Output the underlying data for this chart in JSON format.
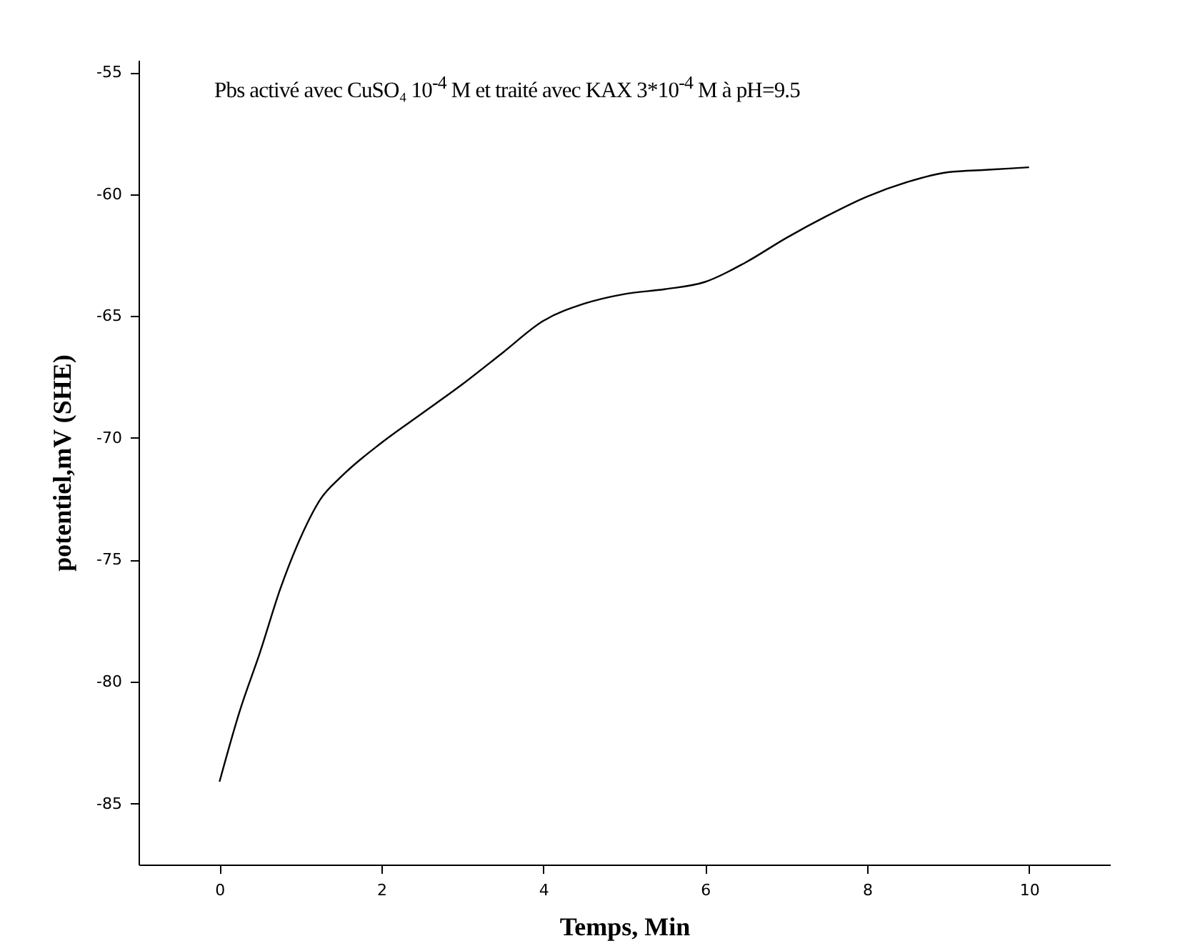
{
  "chart_data": {
    "type": "line",
    "xlabel": "Temps, Min",
    "ylabel": "potentiel,mV (SHE)",
    "annotations": [
      "Pbs activé avec CuSO₄ 10$^{-4}$ M et traité avec KAX 3*10$^{-4}$ M à pH=9.5"
    ],
    "x": [
      0,
      0.25,
      0.5,
      0.75,
      1,
      1.25,
      1.5,
      2,
      2.5,
      3,
      3.5,
      4,
      4.5,
      5,
      5.5,
      6,
      6.5,
      7,
      7.5,
      8,
      8.5,
      9,
      9.5,
      10
    ],
    "series": [
      {
        "color": "#000000",
        "values": [
          -84.1,
          -81.2,
          -78.8,
          -76.2,
          -74.1,
          -72.5,
          -71.6,
          -70.2,
          -69.0,
          -67.8,
          -66.5,
          -65.2,
          -64.5,
          -64.1,
          -63.9,
          -63.6,
          -62.8,
          -61.8,
          -60.9,
          -60.1,
          -59.5,
          -59.1,
          -59.0,
          -58.9
        ]
      }
    ],
    "xlim": [
      -1,
      11
    ],
    "xticks": [
      0,
      2,
      4,
      6,
      8,
      10
    ],
    "ylim": [
      -87.5,
      -54.5
    ],
    "yticks": [
      -85,
      -80,
      -75,
      -70,
      -65,
      -60,
      -55
    ],
    "grid": false,
    "legend": false,
    "marker": "none",
    "line_style": "solid"
  }
}
